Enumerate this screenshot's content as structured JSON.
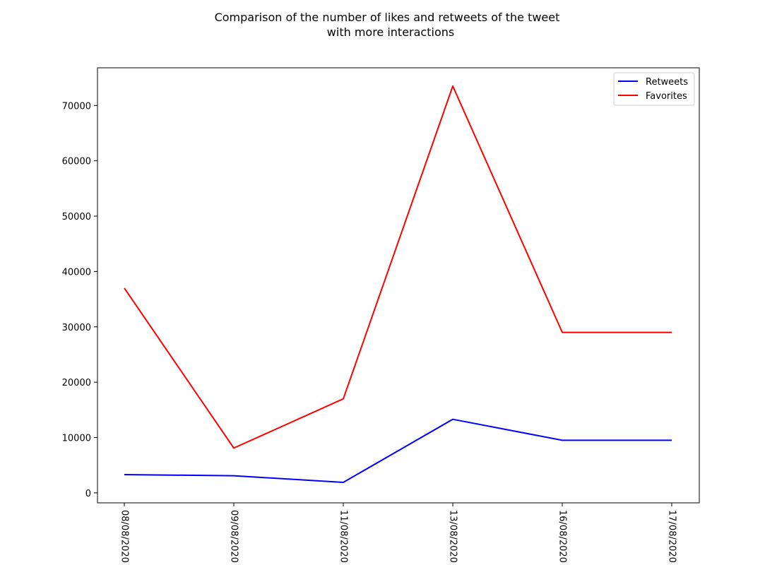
{
  "colors": {
    "background": "#ffffff",
    "axes": "#000000",
    "legend_border": "#cccccc"
  },
  "chart_data": {
    "type": "line",
    "title_lines": [
      "Comparison of the number of likes and retweets of the tweet",
      "with more interactions"
    ],
    "xlabel": "",
    "ylabel": "",
    "categories": [
      "08/08/2020",
      "09/08/2020",
      "11/08/2020",
      "13/08/2020",
      "16/08/2020",
      "17/08/2020"
    ],
    "yticks": [
      0,
      10000,
      20000,
      30000,
      40000,
      50000,
      60000,
      70000
    ],
    "ylim": [
      -1800,
      76800
    ],
    "grid": false,
    "legend_position": "top-right",
    "series": [
      {
        "name": "Retweets",
        "color": "#0000ff",
        "values": [
          3300,
          3100,
          1900,
          13300,
          9500,
          9500
        ]
      },
      {
        "name": "Favorites",
        "color": "#ff0000",
        "values": [
          37000,
          8100,
          17000,
          73500,
          29000,
          29000
        ]
      }
    ]
  }
}
